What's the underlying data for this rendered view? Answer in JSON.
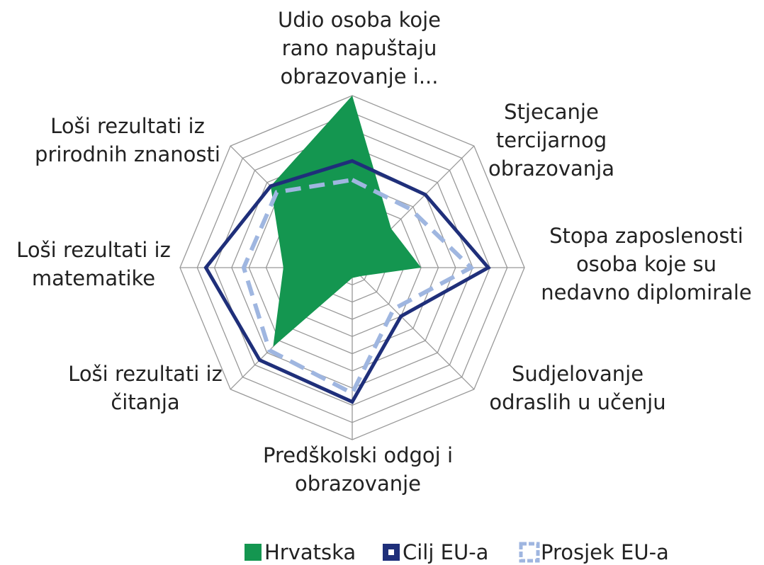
{
  "chart_data": {
    "type": "radar",
    "categories": [
      "Udio osoba koje\nrano napuštaju\nobrazovanje i...",
      "Stjecanje\ntercijarnog\nobrazovanja",
      "Stopa zaposlenosti\nosoba koje su\nnedavno diplomirale",
      "Sudjelovanje\nodraslih u učenju",
      "Predškolski odgoj i\nobrazovanje",
      "Loši rezultati iz\nčitanja",
      "Loši rezultati iz\nmatematike",
      "Loši rezultati iz\nprirodnih znanosti"
    ],
    "series": [
      {
        "name": "Hrvatska",
        "color": "#149650",
        "values": [
          10,
          3.2,
          4.0,
          0.7,
          0.6,
          6.5,
          4.0,
          6.7
        ]
      },
      {
        "name": "Cilj EU-a",
        "color": "#1f2f7a",
        "values": [
          6.2,
          6.0,
          7.9,
          4.0,
          7.8,
          7.6,
          8.5,
          6.7
        ]
      },
      {
        "name": "Prosjek EU-a",
        "color": "#9fb6e0",
        "values": [
          5.1,
          4.8,
          6.9,
          3.4,
          7.3,
          6.8,
          6.3,
          6.2
        ]
      }
    ],
    "ylim": [
      0,
      10
    ],
    "yticks": [
      1,
      2,
      3,
      4,
      5,
      6,
      7,
      8,
      9,
      10
    ],
    "grid": true,
    "legend": "bottom"
  }
}
